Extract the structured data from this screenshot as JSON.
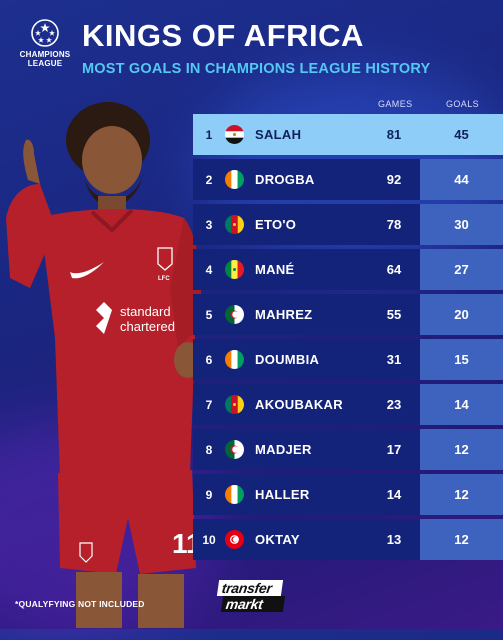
{
  "header": {
    "logo_text_line1": "CHAMPIONS",
    "logo_text_line2": "LEAGUE",
    "title": "KINGS OF AFRICA",
    "subtitle": "MOST GOALS IN CHAMPIONS LEAGUE HISTORY"
  },
  "table": {
    "col_games": "GAMES",
    "col_goals": "GOALS",
    "rows": [
      {
        "rank": "1",
        "name": "SALAH",
        "games": "81",
        "goals": "45",
        "flag": "egypt-flag"
      },
      {
        "rank": "2",
        "name": "DROGBA",
        "games": "92",
        "goals": "44",
        "flag": "ivory-coast-flag"
      },
      {
        "rank": "3",
        "name": "ETO'O",
        "games": "78",
        "goals": "30",
        "flag": "cameroon-flag"
      },
      {
        "rank": "4",
        "name": "MANÉ",
        "games": "64",
        "goals": "27",
        "flag": "senegal-flag"
      },
      {
        "rank": "5",
        "name": "MAHREZ",
        "games": "55",
        "goals": "20",
        "flag": "algeria-flag"
      },
      {
        "rank": "6",
        "name": "DOUMBIA",
        "games": "31",
        "goals": "15",
        "flag": "ivory-coast-flag"
      },
      {
        "rank": "7",
        "name": "AKOUBAKAR",
        "games": "23",
        "goals": "14",
        "flag": "cameroon-flag"
      },
      {
        "rank": "8",
        "name": "MADJER",
        "games": "17",
        "goals": "12",
        "flag": "algeria-flag"
      },
      {
        "rank": "9",
        "name": "HALLER",
        "games": "14",
        "goals": "12",
        "flag": "ivory-coast-flag"
      },
      {
        "rank": "10",
        "name": "OKTAY",
        "games": "13",
        "goals": "12",
        "flag": "tunisia-flag"
      }
    ]
  },
  "footer": {
    "footnote": "*QUALYFYING NOT INCLUDED",
    "brand_line1": "transfer",
    "brand_line2": "markt"
  },
  "player_image": {
    "jersey_text_line1": "standard",
    "jersey_text_line2": "chartered",
    "number": "11",
    "crest_text": "LFC"
  },
  "colors": {
    "background": "#1d2f8f",
    "subtitle": "#55c8f2",
    "row_highlight": "#8ecdf7",
    "row": "#13237a",
    "goals_cell": "#3e63bf",
    "jersey": "#b5202a"
  }
}
